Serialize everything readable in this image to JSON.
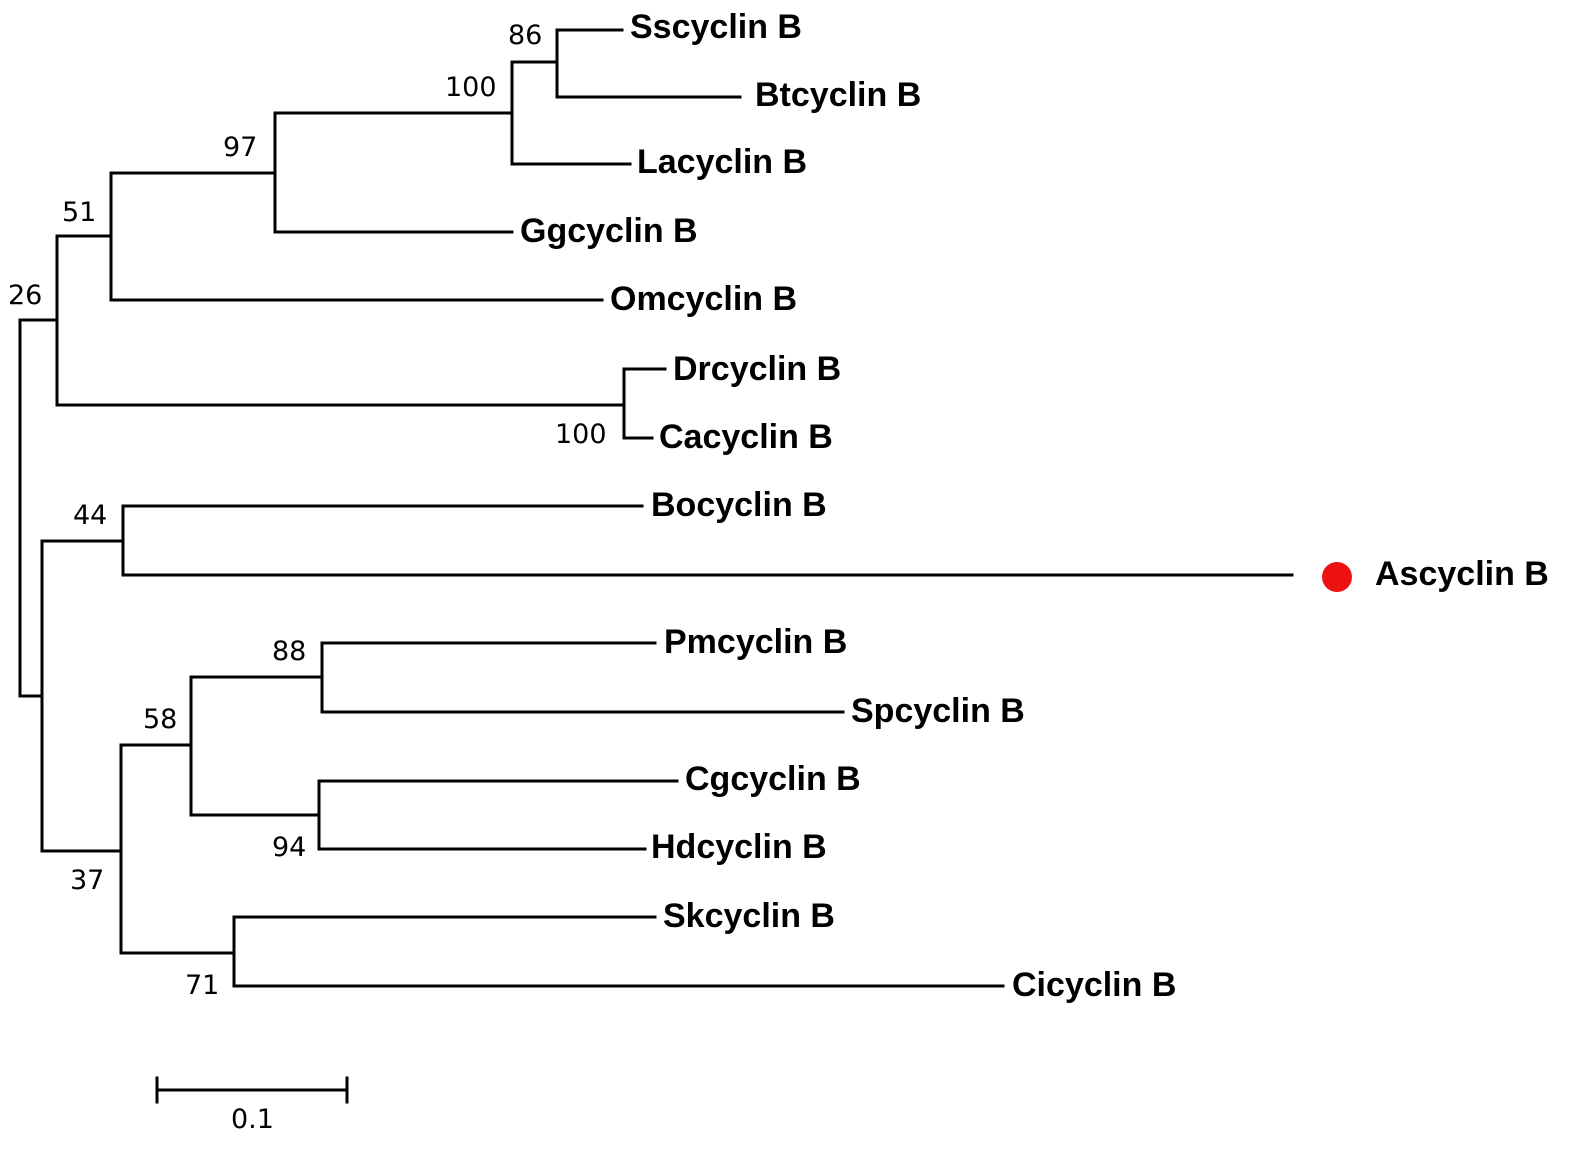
{
  "tree": {
    "taxa": [
      "Sscyclin B",
      "Btcyclin B",
      "Lacyclin B",
      "Ggcyclin B",
      "Omcyclin B",
      "Drcyclin B",
      "Cacyclin B",
      "Bocyclin B",
      "Ascyclin B",
      "Pmcyclin B",
      "Spcyclin B",
      "Cgcyclin B",
      "Hdcyclin B",
      "Skcyclin B",
      "Cicyclin B"
    ],
    "highlighted_taxon": "Ascyclin B",
    "highlight_color": "#ee1111",
    "line_color": "#000000",
    "bootstrap_values": {
      "ss_bt": "86",
      "ss_bt_la": "100",
      "ss_bt_la_gg": "97",
      "with_om": "51",
      "with_dr_ca": "26",
      "dr_ca": "100",
      "bo_as": "44",
      "pm_sp": "88",
      "pm_sp_cg_hd": "58",
      "cg_hd": "94",
      "lower_clade": "37",
      "sk_ci": "71"
    },
    "scale_bar": {
      "label": "0.1",
      "length": 0.1
    }
  }
}
